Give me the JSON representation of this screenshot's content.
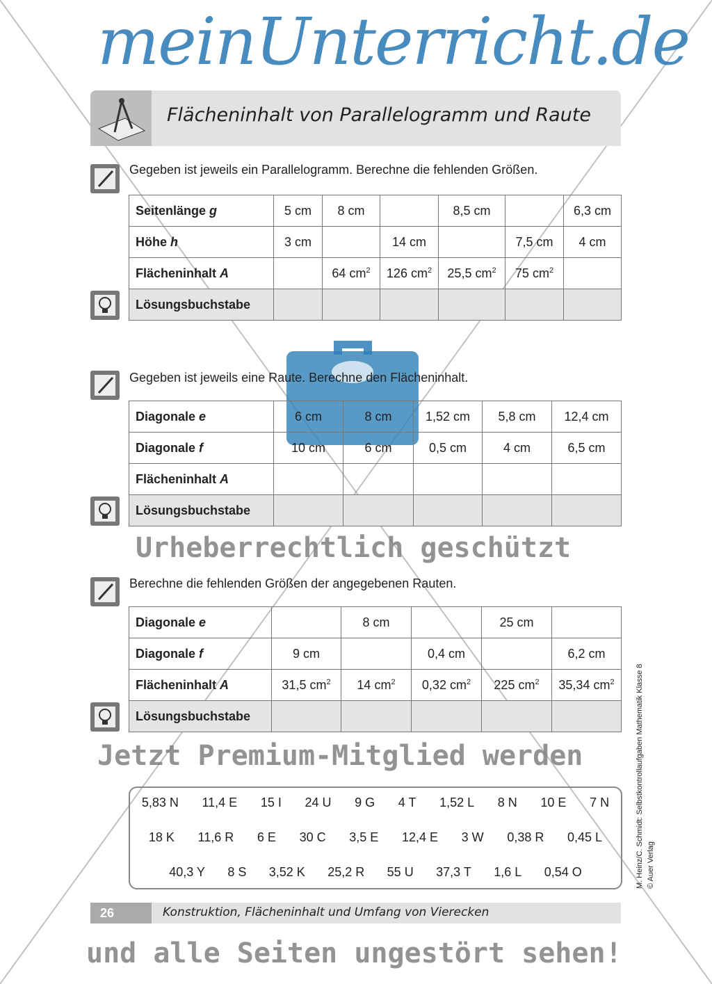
{
  "header": {
    "title": "Flächeninhalt von Parallelogramm und Raute"
  },
  "task1": {
    "instruction": "Gegeben ist jeweils ein Parallelogramm. Berechne die fehlenden Größen.",
    "rows": [
      {
        "label": "Seitenlänge g",
        "cells": [
          "5 cm",
          "8 cm",
          "",
          "8,5 cm",
          "",
          "6,3 cm"
        ]
      },
      {
        "label": "Höhe h",
        "cells": [
          "3 cm",
          "",
          "14 cm",
          "",
          "7,5 cm",
          "4 cm"
        ]
      },
      {
        "label": "Flächeninhalt A",
        "cells": [
          "",
          "64 cm²",
          "126 cm²",
          "25,5 cm²",
          "75 cm²",
          ""
        ]
      },
      {
        "label": "Lösungsbuchstabe",
        "cells": [
          "",
          "",
          "",
          "",
          "",
          ""
        ]
      }
    ]
  },
  "task2": {
    "instruction": "Gegeben ist jeweils eine Raute. Berechne den Flächeninhalt.",
    "rows": [
      {
        "label": "Diagonale e",
        "cells": [
          "6 cm",
          "8 cm",
          "1,52 cm",
          "5,8 cm",
          "12,4 cm"
        ]
      },
      {
        "label": "Diagonale f",
        "cells": [
          "10 cm",
          "6 cm",
          "0,5 cm",
          "4 cm",
          "6,5 cm"
        ]
      },
      {
        "label": "Flächeninhalt A",
        "cells": [
          "",
          "",
          "",
          "",
          ""
        ]
      },
      {
        "label": "Lösungsbuchstabe",
        "cells": [
          "",
          "",
          "",
          "",
          ""
        ]
      }
    ]
  },
  "task3": {
    "instruction": "Berechne die fehlenden Größen der angegebenen Rauten.",
    "rows": [
      {
        "label": "Diagonale e",
        "cells": [
          "",
          "8 cm",
          "",
          "25 cm",
          ""
        ]
      },
      {
        "label": "Diagonale f",
        "cells": [
          "9 cm",
          "",
          "0,4 cm",
          "",
          "6,2 cm"
        ]
      },
      {
        "label": "Flächeninhalt A",
        "cells": [
          "31,5 cm²",
          "14 cm²",
          "0,32 cm²",
          "225 cm²",
          "35,34 cm²"
        ]
      },
      {
        "label": "Lösungsbuchstabe",
        "cells": [
          "",
          "",
          "",
          "",
          ""
        ]
      }
    ]
  },
  "answers": [
    [
      "5,83 N",
      "11,4 E",
      "15 I",
      "24 U",
      "9 G",
      "4 T",
      "1,52 L",
      "8 N",
      "10 E",
      "7 N"
    ],
    [
      "18 K",
      "11,6 R",
      "6 E",
      "30 C",
      "3,5 E",
      "12,4 E",
      "3 W",
      "0,38 R",
      "0,45 L"
    ],
    [
      "40,3 Y",
      "8 S",
      "3,52 K",
      "25,2 R",
      "55 U",
      "37,3 T",
      "1,6 L",
      "0,54 O"
    ]
  ],
  "footer": {
    "page": "26",
    "text": "Konstruktion, Flächeninhalt und Umfang von Vierecken"
  },
  "side": {
    "line1": "M. Heinz/C. Schmidt: Selbstkontrollaufgaben Mathematik Klasse 8",
    "line2": "© Auer Verlag"
  },
  "watermark": {
    "logo": "meinUnterricht.de",
    "line1": "Urheberrechtlich geschützt",
    "line2": "Jetzt Premium-Mitglied werden",
    "line3": "und alle Seiten ungestört sehen!",
    "color": "#2f7fb8"
  }
}
